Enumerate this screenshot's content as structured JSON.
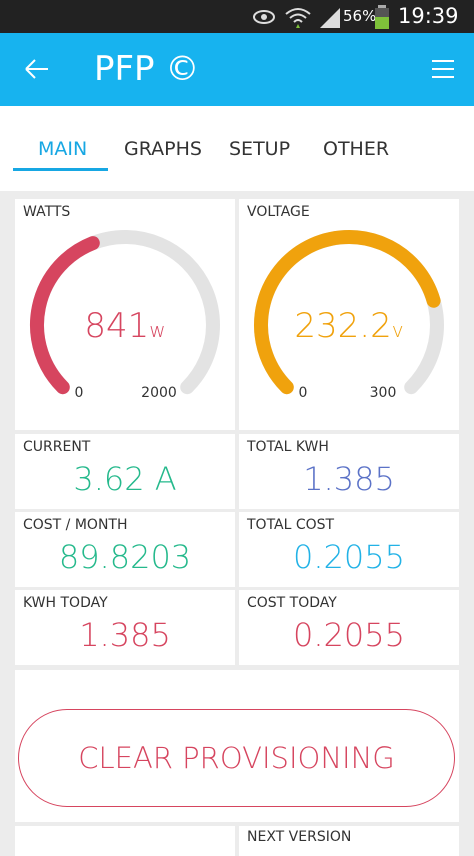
{
  "status_bar": {
    "battery": "56%",
    "time": "19:39"
  },
  "app_bar": {
    "title": "PFP ©"
  },
  "tabs": {
    "items": [
      "MAIN",
      "GRAPHS",
      "SETUP",
      "OTHER"
    ],
    "active": 0
  },
  "gauges": [
    {
      "label": "WATTS",
      "value": 841,
      "unit": "w",
      "min": 0,
      "max": 2000,
      "color": "#d6455f"
    },
    {
      "label": "VOLTAGE",
      "value": 232.2,
      "unit": "v",
      "min": 0,
      "max": 300,
      "color": "#f0a20d"
    }
  ],
  "displays": [
    {
      "label": "CURRENT",
      "value": "3.62 A",
      "color": "#25b98c"
    },
    {
      "label": "TOTAL KWH",
      "value": "1.385",
      "color": "#5b72c7"
    },
    {
      "label": "COST / MONTH",
      "value": "89.8203",
      "color": "#25b98c"
    },
    {
      "label": "TOTAL COST",
      "value": "0.2055",
      "color": "#22b2e6"
    },
    {
      "label": "KWH TODAY",
      "value": "1.385",
      "color": "#d6455f"
    },
    {
      "label": "COST TODAY",
      "value": "0.2055",
      "color": "#d6455f"
    }
  ],
  "button": {
    "label": "CLEAR PROVISIONING"
  },
  "footer": {
    "label": "NEXT VERSION"
  }
}
